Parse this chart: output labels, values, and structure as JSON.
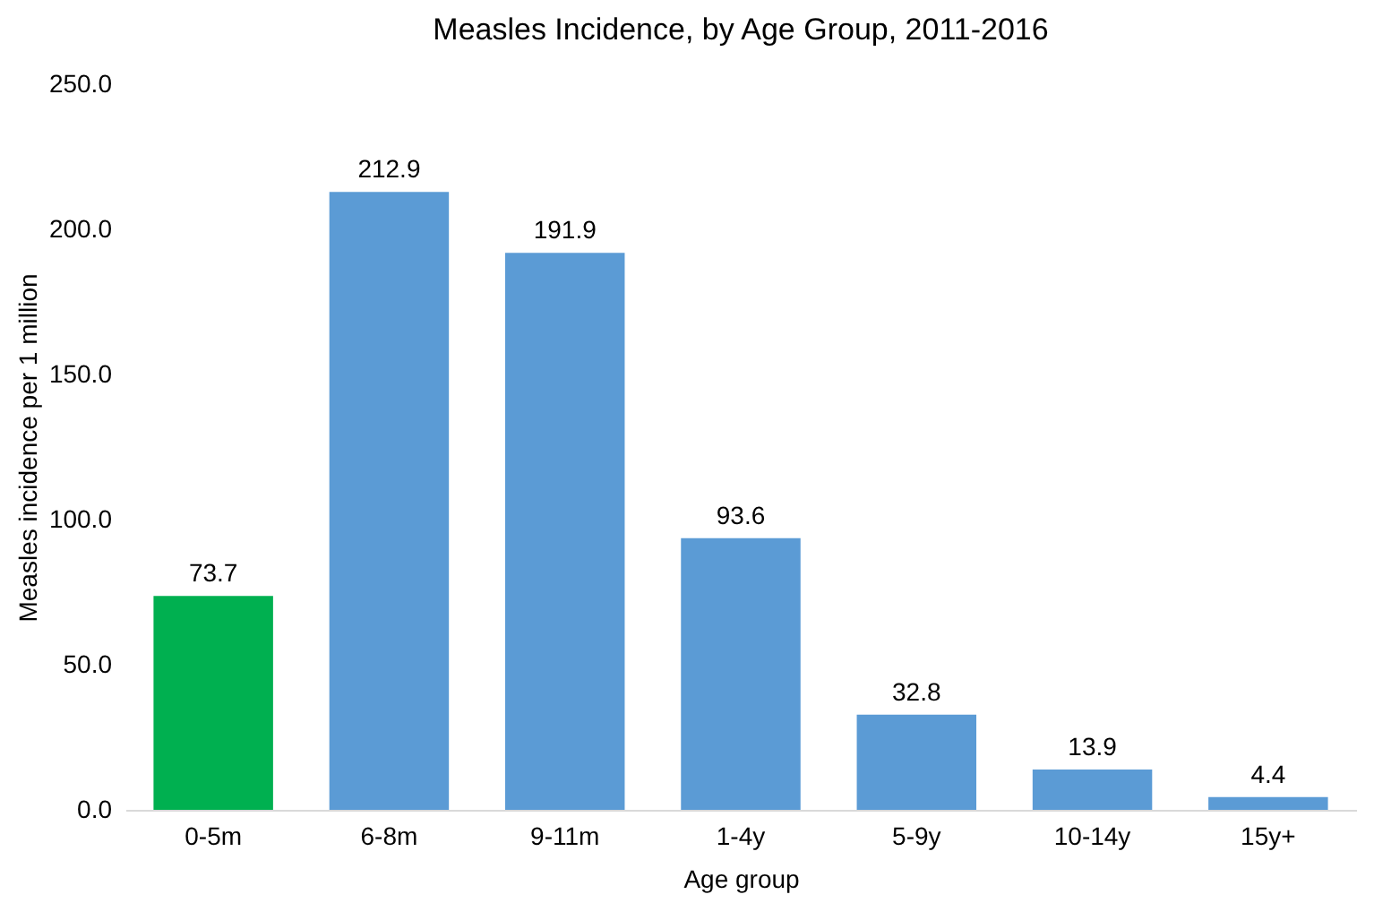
{
  "chart_data": {
    "type": "bar",
    "title": "Measles Incidence, by Age Group, 2011-2016",
    "xlabel": "Age group",
    "ylabel": "Measles incidence per 1 million",
    "categories": [
      "0-5m",
      "6-8m",
      "9-11m",
      "1-4y",
      "5-9y",
      "10-14y",
      "15y+"
    ],
    "values": [
      73.7,
      212.9,
      191.9,
      93.6,
      32.8,
      13.9,
      4.4
    ],
    "colors": [
      "#00b050",
      "#5b9bd5",
      "#5b9bd5",
      "#5b9bd5",
      "#5b9bd5",
      "#5b9bd5",
      "#5b9bd5"
    ],
    "ylim": [
      0,
      250
    ],
    "yticks": [
      {
        "value": 0,
        "label": "0.0"
      },
      {
        "value": 50,
        "label": "50.0"
      },
      {
        "value": 100,
        "label": "100.0"
      },
      {
        "value": 150,
        "label": "150.0"
      },
      {
        "value": 200,
        "label": "200.0"
      },
      {
        "value": 250,
        "label": "250.0"
      }
    ],
    "data_labels": true,
    "grid": false
  }
}
